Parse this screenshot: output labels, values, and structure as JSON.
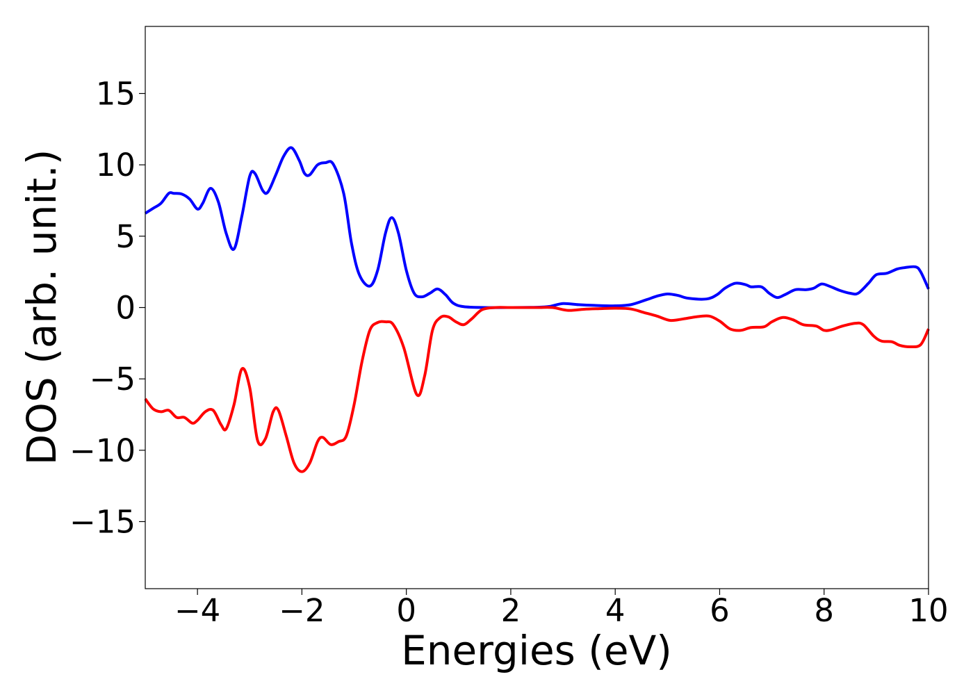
{
  "chart_data": {
    "type": "line",
    "title": "",
    "xlabel": "Energies (eV)",
    "ylabel": "DOS (arb. unit.)",
    "xlim": [
      -5,
      10
    ],
    "ylim": [
      -19.7,
      19.7
    ],
    "xticks": [
      -4,
      -2,
      0,
      2,
      4,
      6,
      8,
      10
    ],
    "xtick_labels": [
      "−4",
      "−2",
      "0",
      "2",
      "4",
      "6",
      "8",
      "10"
    ],
    "yticks": [
      -15,
      -10,
      -5,
      0,
      5,
      10,
      15
    ],
    "ytick_labels": [
      "−15",
      "−10",
      "−5",
      "0",
      "5",
      "10",
      "15"
    ],
    "grid": false,
    "legend": "none",
    "series": [
      {
        "color": "#0000ff",
        "points": [
          [
            -5.0,
            6.6
          ],
          [
            -4.85,
            6.95
          ],
          [
            -4.7,
            7.3
          ],
          [
            -4.55,
            8.0
          ],
          [
            -4.45,
            8.0
          ],
          [
            -4.3,
            7.95
          ],
          [
            -4.15,
            7.6
          ],
          [
            -4.0,
            6.9
          ],
          [
            -3.9,
            7.3
          ],
          [
            -3.75,
            8.35
          ],
          [
            -3.6,
            7.4
          ],
          [
            -3.45,
            5.2
          ],
          [
            -3.3,
            4.1
          ],
          [
            -3.15,
            6.4
          ],
          [
            -3.0,
            9.2
          ],
          [
            -2.9,
            9.4
          ],
          [
            -2.75,
            8.2
          ],
          [
            -2.65,
            8.1
          ],
          [
            -2.5,
            9.3
          ],
          [
            -2.35,
            10.6
          ],
          [
            -2.2,
            11.2
          ],
          [
            -2.05,
            10.3
          ],
          [
            -1.95,
            9.4
          ],
          [
            -1.85,
            9.3
          ],
          [
            -1.7,
            10.0
          ],
          [
            -1.55,
            10.15
          ],
          [
            -1.4,
            10.05
          ],
          [
            -1.2,
            8.0
          ],
          [
            -1.05,
            4.5
          ],
          [
            -0.9,
            2.3
          ],
          [
            -0.7,
            1.5
          ],
          [
            -0.55,
            2.6
          ],
          [
            -0.4,
            5.2
          ],
          [
            -0.28,
            6.3
          ],
          [
            -0.15,
            5.2
          ],
          [
            0.0,
            2.6
          ],
          [
            0.15,
            1.0
          ],
          [
            0.3,
            0.75
          ],
          [
            0.45,
            1.0
          ],
          [
            0.6,
            1.3
          ],
          [
            0.75,
            0.9
          ],
          [
            0.9,
            0.3
          ],
          [
            1.1,
            0.06
          ],
          [
            1.5,
            0.0
          ],
          [
            2.0,
            0.0
          ],
          [
            2.5,
            0.02
          ],
          [
            2.75,
            0.08
          ],
          [
            3.0,
            0.28
          ],
          [
            3.3,
            0.2
          ],
          [
            3.6,
            0.15
          ],
          [
            4.0,
            0.12
          ],
          [
            4.3,
            0.2
          ],
          [
            4.6,
            0.55
          ],
          [
            4.8,
            0.8
          ],
          [
            5.0,
            0.95
          ],
          [
            5.2,
            0.85
          ],
          [
            5.4,
            0.65
          ],
          [
            5.75,
            0.6
          ],
          [
            5.95,
            0.9
          ],
          [
            6.1,
            1.35
          ],
          [
            6.3,
            1.7
          ],
          [
            6.5,
            1.6
          ],
          [
            6.6,
            1.45
          ],
          [
            6.8,
            1.45
          ],
          [
            6.95,
            1.0
          ],
          [
            7.1,
            0.7
          ],
          [
            7.25,
            0.9
          ],
          [
            7.45,
            1.25
          ],
          [
            7.65,
            1.25
          ],
          [
            7.8,
            1.35
          ],
          [
            7.95,
            1.65
          ],
          [
            8.1,
            1.5
          ],
          [
            8.3,
            1.2
          ],
          [
            8.5,
            1.0
          ],
          [
            8.65,
            1.0
          ],
          [
            8.85,
            1.7
          ],
          [
            9.0,
            2.3
          ],
          [
            9.2,
            2.4
          ],
          [
            9.4,
            2.7
          ],
          [
            9.55,
            2.8
          ],
          [
            9.75,
            2.85
          ],
          [
            9.85,
            2.5
          ],
          [
            10.0,
            1.3
          ]
        ]
      },
      {
        "color": "#ff0000",
        "points": [
          [
            -5.0,
            -6.4
          ],
          [
            -4.85,
            -7.1
          ],
          [
            -4.7,
            -7.3
          ],
          [
            -4.55,
            -7.2
          ],
          [
            -4.4,
            -7.7
          ],
          [
            -4.25,
            -7.7
          ],
          [
            -4.1,
            -8.1
          ],
          [
            -4.0,
            -7.9
          ],
          [
            -3.85,
            -7.3
          ],
          [
            -3.7,
            -7.2
          ],
          [
            -3.55,
            -8.2
          ],
          [
            -3.45,
            -8.5
          ],
          [
            -3.3,
            -6.8
          ],
          [
            -3.15,
            -4.3
          ],
          [
            -3.0,
            -5.6
          ],
          [
            -2.85,
            -9.3
          ],
          [
            -2.7,
            -9.2
          ],
          [
            -2.55,
            -7.3
          ],
          [
            -2.45,
            -7.2
          ],
          [
            -2.3,
            -9.0
          ],
          [
            -2.15,
            -10.9
          ],
          [
            -2.0,
            -11.5
          ],
          [
            -1.85,
            -10.9
          ],
          [
            -1.7,
            -9.4
          ],
          [
            -1.6,
            -9.1
          ],
          [
            -1.45,
            -9.6
          ],
          [
            -1.3,
            -9.4
          ],
          [
            -1.15,
            -9.0
          ],
          [
            -1.0,
            -6.8
          ],
          [
            -0.85,
            -3.8
          ],
          [
            -0.7,
            -1.6
          ],
          [
            -0.55,
            -1.05
          ],
          [
            -0.4,
            -1.0
          ],
          [
            -0.25,
            -1.2
          ],
          [
            -0.05,
            -2.8
          ],
          [
            0.2,
            -6.1
          ],
          [
            0.35,
            -4.8
          ],
          [
            0.5,
            -1.6
          ],
          [
            0.65,
            -0.7
          ],
          [
            0.8,
            -0.65
          ],
          [
            0.95,
            -1.0
          ],
          [
            1.1,
            -1.2
          ],
          [
            1.25,
            -0.8
          ],
          [
            1.45,
            -0.15
          ],
          [
            1.7,
            0.0
          ],
          [
            2.0,
            0.0
          ],
          [
            2.5,
            0.0
          ],
          [
            2.8,
            0.0
          ],
          [
            3.1,
            -0.2
          ],
          [
            3.4,
            -0.12
          ],
          [
            3.7,
            -0.08
          ],
          [
            4.0,
            -0.05
          ],
          [
            4.3,
            -0.1
          ],
          [
            4.55,
            -0.35
          ],
          [
            4.8,
            -0.6
          ],
          [
            5.05,
            -0.9
          ],
          [
            5.3,
            -0.8
          ],
          [
            5.55,
            -0.65
          ],
          [
            5.8,
            -0.6
          ],
          [
            6.0,
            -0.95
          ],
          [
            6.2,
            -1.5
          ],
          [
            6.4,
            -1.6
          ],
          [
            6.6,
            -1.4
          ],
          [
            6.85,
            -1.35
          ],
          [
            7.0,
            -1.0
          ],
          [
            7.2,
            -0.7
          ],
          [
            7.4,
            -0.85
          ],
          [
            7.6,
            -1.2
          ],
          [
            7.85,
            -1.3
          ],
          [
            8.0,
            -1.6
          ],
          [
            8.15,
            -1.55
          ],
          [
            8.35,
            -1.3
          ],
          [
            8.6,
            -1.1
          ],
          [
            8.75,
            -1.2
          ],
          [
            8.95,
            -2.0
          ],
          [
            9.1,
            -2.35
          ],
          [
            9.3,
            -2.4
          ],
          [
            9.45,
            -2.65
          ],
          [
            9.65,
            -2.75
          ],
          [
            9.85,
            -2.6
          ],
          [
            10.0,
            -1.5
          ]
        ]
      }
    ]
  }
}
